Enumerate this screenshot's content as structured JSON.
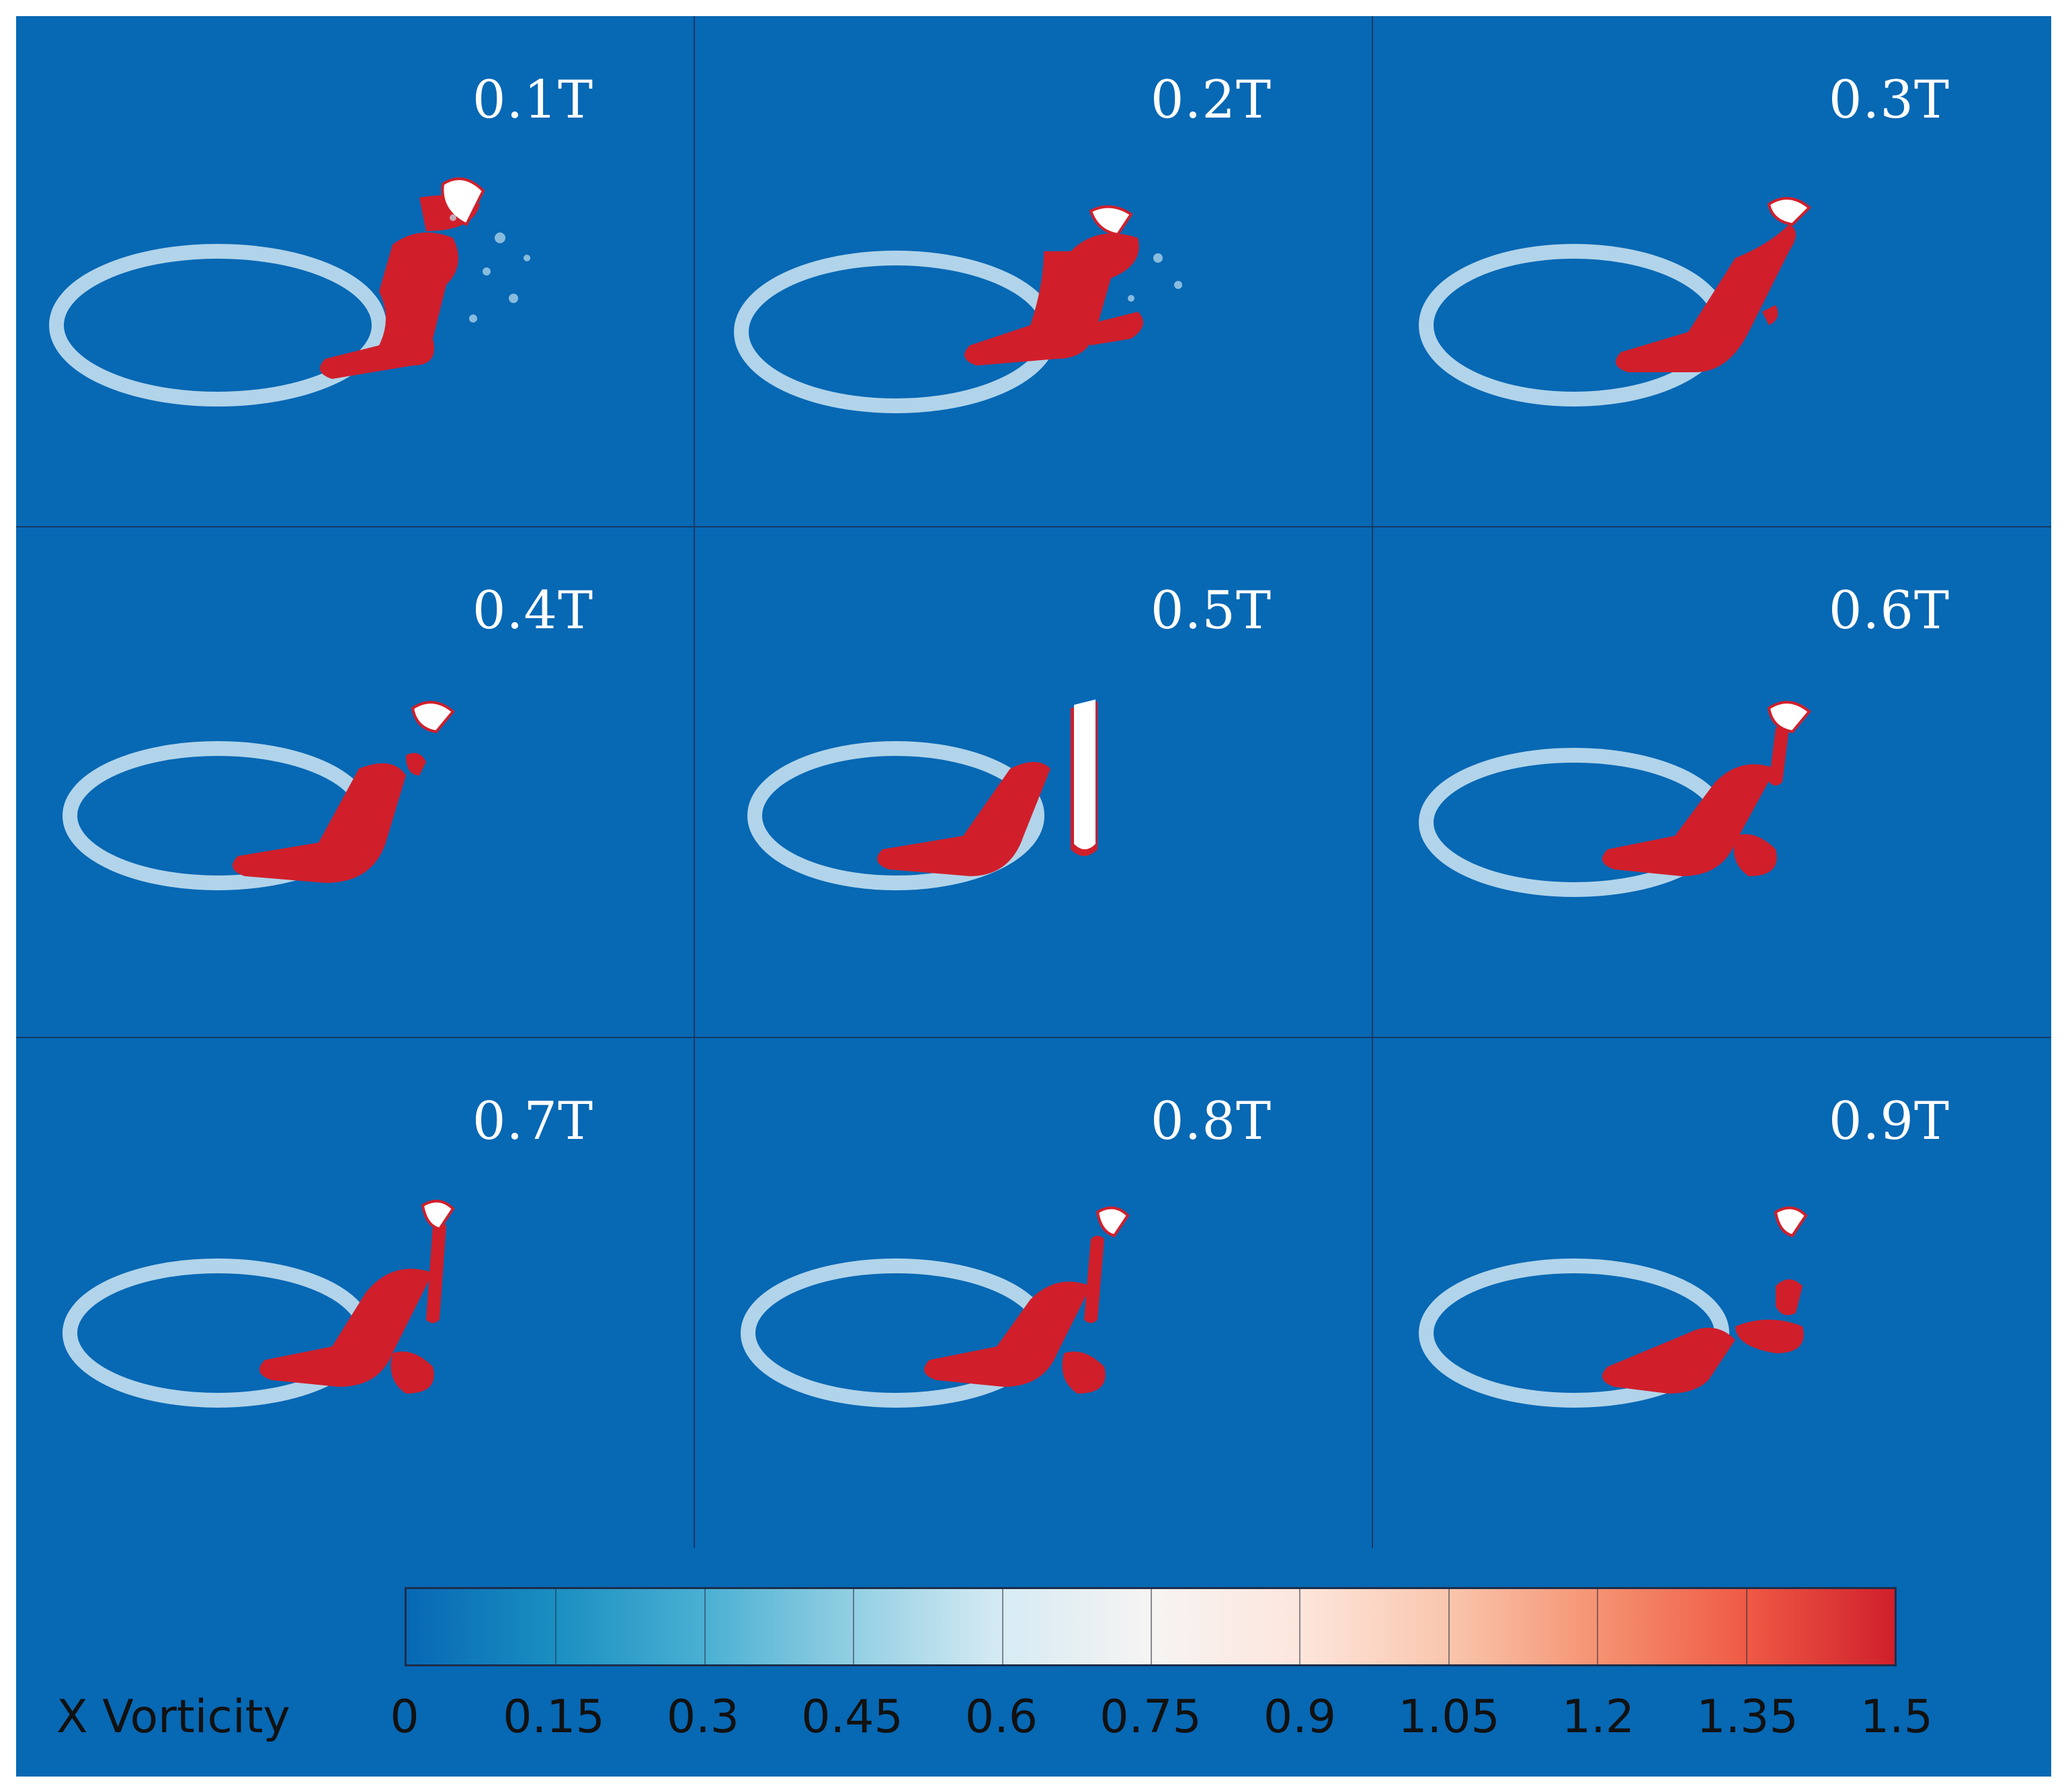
{
  "panels": [
    {
      "label": "0.1T"
    },
    {
      "label": "0.2T"
    },
    {
      "label": "0.3T"
    },
    {
      "label": "0.4T"
    },
    {
      "label": "0.5T"
    },
    {
      "label": "0.6T"
    },
    {
      "label": "0.7T"
    },
    {
      "label": "0.8T"
    },
    {
      "label": "0.9T"
    }
  ],
  "colorbar": {
    "title": "X Vorticity",
    "ticks": [
      "0",
      "0.15",
      "0.3",
      "0.45",
      "0.6",
      "0.75",
      "0.9",
      "1.05",
      "1.2",
      "1.35",
      "1.5"
    ],
    "colors": {
      "low": "#0768b4",
      "mid": "#f6f4f3",
      "high": "#d01f2b"
    }
  }
}
